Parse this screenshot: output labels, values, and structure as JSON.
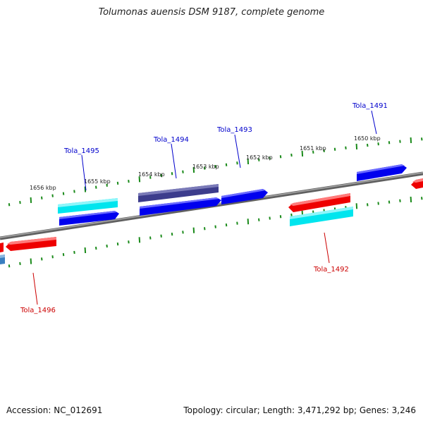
{
  "title": "Tolumonas auensis DSM 9187, complete genome",
  "footer": {
    "accession": "Accession: NC_012691",
    "topology": "Topology: circular; Length: 3,471,292 bp; Genes: 3,246"
  },
  "colors": {
    "backbone": "#808080",
    "tick": "#1a8a1a",
    "forward_gene": "#0000ee",
    "reverse_gene": "#ee0000",
    "cyan_gene": "#00e5ee",
    "dark_gene": "#3c3c8c",
    "steelblue_gene": "#3a7fc0",
    "label_forward": "#0000cc",
    "label_reverse": "#cc0000"
  },
  "scale_labels": [
    "1650 kbp",
    "1651 kbp",
    "1652 kbp",
    "1653 kbp",
    "1654 kbp",
    "1655 kbp",
    "1656 kbp"
  ],
  "gene_labels": {
    "tola_1491": "Tola_1491",
    "tola_1492": "Tola_1492",
    "tola_1493": "Tola_1493",
    "tola_1494": "Tola_1494",
    "tola_1495": "Tola_1495",
    "tola_1496": "Tola_1496"
  }
}
